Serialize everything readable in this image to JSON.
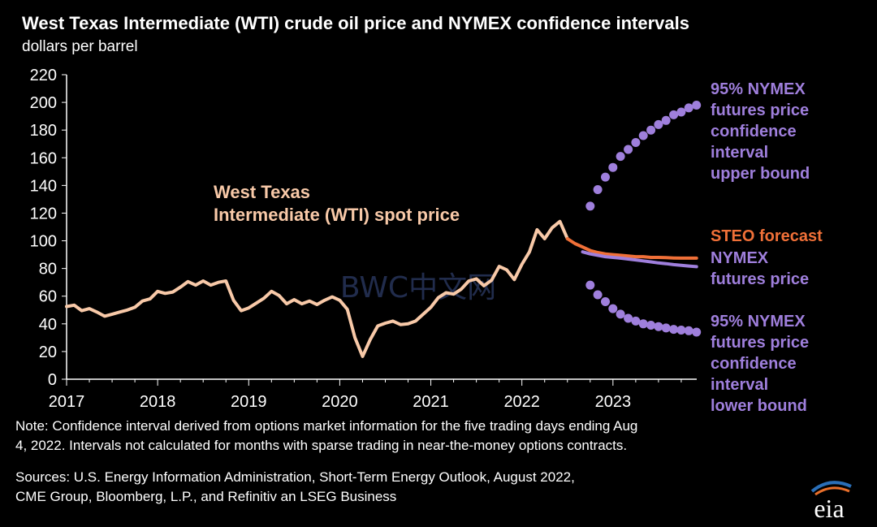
{
  "page": {
    "title": "West Texas Intermediate (WTI) crude oil price and NYMEX confidence intervals",
    "subtitle": "dollars per barrel",
    "note_line1": "Note: Confidence interval derived from options market information for the five trading days ending Aug",
    "note_line2": "4, 2022. Intervals not calculated for months with sparse trading in near-the-money options contracts.",
    "sources_line1": "Sources: U.S. Energy Information Administration, Short-Term Energy Outlook, August 2022,",
    "sources_line2": "CME Group, Bloomberg, L.P., and Refinitiv an LSEG Business",
    "logo_text": "eia",
    "watermark": "BWC中文网"
  },
  "colors": {
    "background": "#000000",
    "wti": "#f8c9a8",
    "steo": "#f07038",
    "nymex": "#9f7fdc",
    "text": "#ffffff",
    "logo_blue": "#2a6fb8",
    "logo_orange": "#e86f2b"
  },
  "chart_data": {
    "type": "line",
    "title": "West Texas Intermediate (WTI) crude oil price and NYMEX confidence intervals",
    "ylabel": "dollars per barrel",
    "xlabel": "",
    "ylim": [
      0,
      220
    ],
    "xlim": [
      2017.0,
      2023.92
    ],
    "grid": false,
    "y_ticks": [
      "0",
      "20",
      "40",
      "60",
      "80",
      "100",
      "120",
      "140",
      "160",
      "180",
      "200",
      "220"
    ],
    "x_ticks": [
      {
        "label": "2017",
        "x": 2017.0
      },
      {
        "label": "2018",
        "x": 2018.0
      },
      {
        "label": "2019",
        "x": 2019.0
      },
      {
        "label": "2020",
        "x": 2020.0
      },
      {
        "label": "2021",
        "x": 2021.0
      },
      {
        "label": "2022",
        "x": 2022.0
      },
      {
        "label": "2023",
        "x": 2023.0
      }
    ],
    "series": [
      {
        "name": "West Texas Intermediate (WTI) spot price",
        "label_lines": [
          "West Texas",
          "Intermediate (WTI) spot price"
        ],
        "style": "line",
        "x": [
          2017.0,
          2017.083,
          2017.167,
          2017.25,
          2017.333,
          2017.417,
          2017.5,
          2017.583,
          2017.667,
          2017.75,
          2017.833,
          2017.917,
          2018.0,
          2018.083,
          2018.167,
          2018.25,
          2018.333,
          2018.417,
          2018.5,
          2018.583,
          2018.667,
          2018.75,
          2018.833,
          2018.917,
          2019.0,
          2019.083,
          2019.167,
          2019.25,
          2019.333,
          2019.417,
          2019.5,
          2019.583,
          2019.667,
          2019.75,
          2019.833,
          2019.917,
          2020.0,
          2020.083,
          2020.167,
          2020.25,
          2020.333,
          2020.417,
          2020.5,
          2020.583,
          2020.667,
          2020.75,
          2020.833,
          2020.917,
          2021.0,
          2021.083,
          2021.167,
          2021.25,
          2021.333,
          2021.417,
          2021.5,
          2021.583,
          2021.667,
          2021.75,
          2021.833,
          2021.917,
          2022.0,
          2022.083,
          2022.167,
          2022.25,
          2022.333,
          2022.417,
          2022.5
        ],
        "values": [
          52.5,
          53.5,
          49.5,
          51.0,
          48.5,
          45.5,
          47.0,
          48.5,
          50.0,
          52.0,
          56.5,
          58.0,
          63.5,
          62.0,
          63.0,
          66.5,
          70.5,
          68.0,
          71.0,
          68.0,
          70.0,
          71.0,
          57.0,
          49.5,
          51.5,
          55.0,
          58.5,
          63.5,
          60.5,
          54.5,
          57.5,
          54.5,
          56.5,
          54.0,
          57.0,
          59.5,
          57.0,
          50.5,
          30.0,
          16.5,
          28.5,
          38.5,
          40.5,
          42.0,
          39.5,
          40.0,
          42.0,
          47.0,
          52.0,
          59.0,
          62.5,
          61.5,
          65.0,
          71.0,
          72.5,
          67.5,
          71.5,
          81.5,
          79.0,
          72.0,
          83.0,
          92.0,
          108.0,
          101.5,
          109.5,
          114.0,
          101.5
        ]
      },
      {
        "name": "STEO forecast",
        "style": "line",
        "x": [
          2022.5,
          2022.583,
          2022.667,
          2022.75,
          2022.833,
          2022.917,
          2023.0,
          2023.083,
          2023.167,
          2023.25,
          2023.333,
          2023.417,
          2023.5,
          2023.583,
          2023.667,
          2023.75,
          2023.833,
          2023.917
        ],
        "values": [
          101.5,
          98.0,
          95.5,
          93.0,
          91.5,
          90.5,
          90.0,
          89.5,
          89.0,
          88.5,
          88.5,
          88.0,
          88.0,
          87.8,
          87.6,
          87.5,
          87.5,
          87.5
        ]
      },
      {
        "name": "NYMEX futures price",
        "label_lines": [
          "NYMEX",
          "futures price"
        ],
        "style": "line",
        "x": [
          2022.667,
          2022.75,
          2022.833,
          2022.917,
          2023.0,
          2023.083,
          2023.167,
          2023.25,
          2023.333,
          2023.417,
          2023.5,
          2023.583,
          2023.667,
          2023.75,
          2023.833,
          2023.917
        ],
        "values": [
          92.0,
          90.5,
          89.5,
          88.5,
          88.0,
          87.5,
          86.8,
          86.2,
          85.5,
          84.8,
          84.0,
          83.5,
          82.8,
          82.3,
          81.8,
          81.3
        ]
      },
      {
        "name": "95% NYMEX futures price confidence interval upper bound",
        "label_lines": [
          "95% NYMEX",
          "futures price",
          "confidence",
          "interval",
          "upper bound"
        ],
        "style": "dots",
        "x": [
          2022.75,
          2022.833,
          2022.917,
          2023.0,
          2023.083,
          2023.167,
          2023.25,
          2023.333,
          2023.417,
          2023.5,
          2023.583,
          2023.667,
          2023.75,
          2023.833,
          2023.917
        ],
        "values": [
          125.0,
          137.0,
          146.0,
          153.0,
          161.0,
          166.0,
          171.0,
          176.0,
          180.0,
          184.0,
          187.0,
          191.0,
          193.0,
          196.0,
          198.0
        ]
      },
      {
        "name": "95% NYMEX futures price confidence interval lower bound",
        "label_lines": [
          "95% NYMEX",
          "futures price",
          "confidence",
          "interval",
          "lower bound"
        ],
        "style": "dots",
        "x": [
          2022.75,
          2022.833,
          2022.917,
          2023.0,
          2023.083,
          2023.167,
          2023.25,
          2023.333,
          2023.417,
          2023.5,
          2023.583,
          2023.667,
          2023.75,
          2023.833,
          2023.917
        ],
        "values": [
          68.0,
          61.0,
          56.0,
          51.0,
          47.0,
          44.0,
          42.0,
          40.0,
          39.0,
          38.0,
          37.0,
          36.0,
          35.5,
          35.0,
          34.0
        ]
      }
    ],
    "series_labels": {
      "steo": "STEO forecast"
    }
  }
}
